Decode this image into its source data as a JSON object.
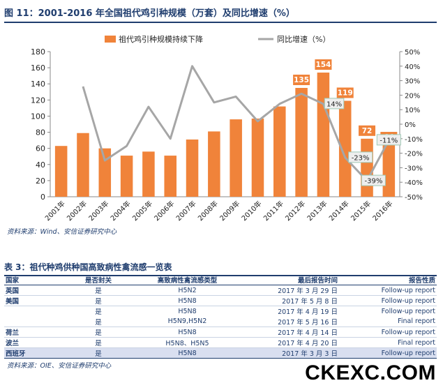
{
  "figure_title": "图 11：2001-2016 年全国祖代鸡引种规模（万套）及同比增速（%）",
  "figure_source": "资料来源：Wind、安信证券研究中心",
  "chart_data": {
    "type": "bar+line",
    "categories": [
      "2001年",
      "2002年",
      "2003年",
      "2004年",
      "2005年",
      "2006年",
      "2007年",
      "2008年",
      "2009年",
      "2010年",
      "2011年",
      "2012年",
      "2013年",
      "2014年",
      "2015年",
      "2016年"
    ],
    "series": [
      {
        "name": "祖代鸡引种规模持续下降",
        "type": "bar",
        "axis": "left",
        "color": "#f0833a",
        "values": [
          63,
          79,
          60,
          51,
          56,
          51,
          71,
          81,
          96,
          97,
          112,
          135,
          154,
          119,
          72,
          64
        ]
      },
      {
        "name": "同比增速（%）",
        "type": "line",
        "axis": "right",
        "color": "#a6a6a6",
        "values": [
          null,
          26,
          -25,
          -15,
          12,
          -10,
          40,
          15,
          19,
          2,
          14,
          21,
          14,
          -23,
          -39,
          -11
        ]
      }
    ],
    "bar_labels": [
      {
        "index": 11,
        "text": "135"
      },
      {
        "index": 12,
        "text": "154"
      },
      {
        "index": 13,
        "text": "119"
      },
      {
        "index": 14,
        "text": "72"
      },
      {
        "index": 15,
        "text": "64"
      }
    ],
    "line_labels": [
      {
        "index": 13,
        "text": "14%",
        "value": 14,
        "at": 12.5
      },
      {
        "index": 13,
        "text": "-23%",
        "value": -23,
        "at": 13.7
      },
      {
        "index": 14,
        "text": "-39%",
        "value": -39,
        "at": 14.3
      },
      {
        "index": 15,
        "text": "-11%",
        "value": -11,
        "at": 15
      }
    ],
    "ylim_left": [
      0,
      180
    ],
    "yticks_left": [
      "0",
      "20",
      "40",
      "60",
      "80",
      "100",
      "120",
      "140",
      "160",
      "180"
    ],
    "ylim_right": [
      -50,
      50
    ],
    "yticks_right": [
      "-50%",
      "-40%",
      "-30%",
      "-20%",
      "-10%",
      "0%",
      "10%",
      "20%",
      "30%",
      "40%",
      "50%"
    ],
    "legend_placement": "top"
  },
  "table": {
    "title": "表 3：祖代种鸡供种国高致病性禽流感一览表",
    "headers": [
      "国家",
      "是否封关",
      "高致病性禽流感类型",
      "最后报告时间",
      "报告性质"
    ],
    "rows": [
      {
        "country": "英国",
        "closed": "是",
        "type": "H5N2",
        "date": "2017 年 3 月 29 日",
        "nature": "Follow-up report"
      },
      {
        "country": "美国",
        "closed": "是",
        "type": "H5N8",
        "date": "2017 年 5 月 8 日",
        "nature": "Follow-up report"
      },
      {
        "country": "",
        "closed": "是",
        "type": "H5N8",
        "date": "2017 年 4 月 19 日",
        "nature": "Follow-up report"
      },
      {
        "country": "法国",
        "closed": "",
        "type": "",
        "date": "",
        "nature": ""
      },
      {
        "country": "",
        "closed": "是",
        "type": "H5N9,H5N2",
        "date": "2017 年 5 月 16 日",
        "nature": "Final report"
      },
      {
        "country": "荷兰",
        "closed": "是",
        "type": "H5N8",
        "date": "2017 年 4 月 14 日",
        "nature": "Follow-up report"
      },
      {
        "country": "波兰",
        "closed": "是",
        "type": "H5N8、H5N5",
        "date": "2017 年 4 月 20 日",
        "nature": "Final report"
      },
      {
        "country": "西班牙",
        "closed": "是",
        "type": "H5N8",
        "date": "2017 年 3 月 3 日",
        "nature": "Follow-up report"
      }
    ],
    "source": "资料来源：OIE、安信证券研究中心"
  },
  "watermark": "CKEXC.COM"
}
